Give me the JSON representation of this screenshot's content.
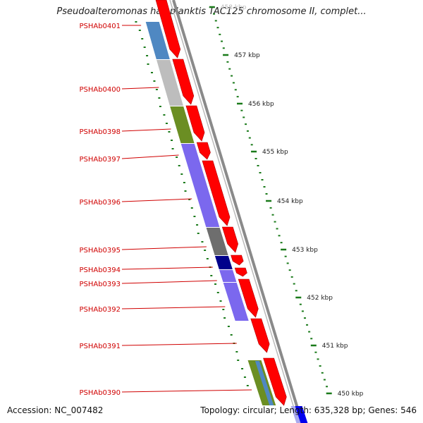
{
  "title": "Pseudoalteromonas haloplanktis TAC125 chromosome II, complet...",
  "footer": {
    "accession": "Accession: NC_007482",
    "summary": "Topology: circular; Length: 635,328 bp; Genes: 546"
  },
  "colors": {
    "gene_label": "#d00000",
    "cds_forward": "#ff0000",
    "kbp_tick": "#1a7a1a",
    "backbone": "#8a8a8a",
    "fwd_strand_arrow": "#0000ee"
  },
  "kbp_ticks": [
    {
      "label": "458 kbp"
    },
    {
      "label": "457 kbp"
    },
    {
      "label": "456 kbp"
    },
    {
      "label": "455 kbp"
    },
    {
      "label": "454 kbp"
    },
    {
      "label": "453 kbp"
    },
    {
      "label": "452 kbp"
    },
    {
      "label": "451 kbp"
    },
    {
      "label": "450 kbp"
    }
  ],
  "genes": [
    {
      "label": "PSHAb0401",
      "cog_color": "#4f88c2"
    },
    {
      "label": "PSHAb0400",
      "cog_color": "#bdbdbd"
    },
    {
      "label": "PSHAb0398",
      "cog_color": "#6b8e23"
    },
    {
      "label": "PSHAb0397",
      "cog_color": "#7b68ee"
    },
    {
      "label": "PSHAb0396",
      "cog_color": "#7b68ee"
    },
    {
      "label": "PSHAb0395",
      "cog_color": "#6e6e6e"
    },
    {
      "label": "PSHAb0394",
      "cog_color": "#00008b"
    },
    {
      "label": "PSHAb0393",
      "cog_color": "#7b68ee"
    },
    {
      "label": "PSHAb0392",
      "cog_color": "#7b68ee"
    },
    {
      "label": "PSHAb0391",
      "cog_color": "#ffffff"
    },
    {
      "label": "PSHAb0390",
      "cog_color": "#6b8e23"
    }
  ]
}
